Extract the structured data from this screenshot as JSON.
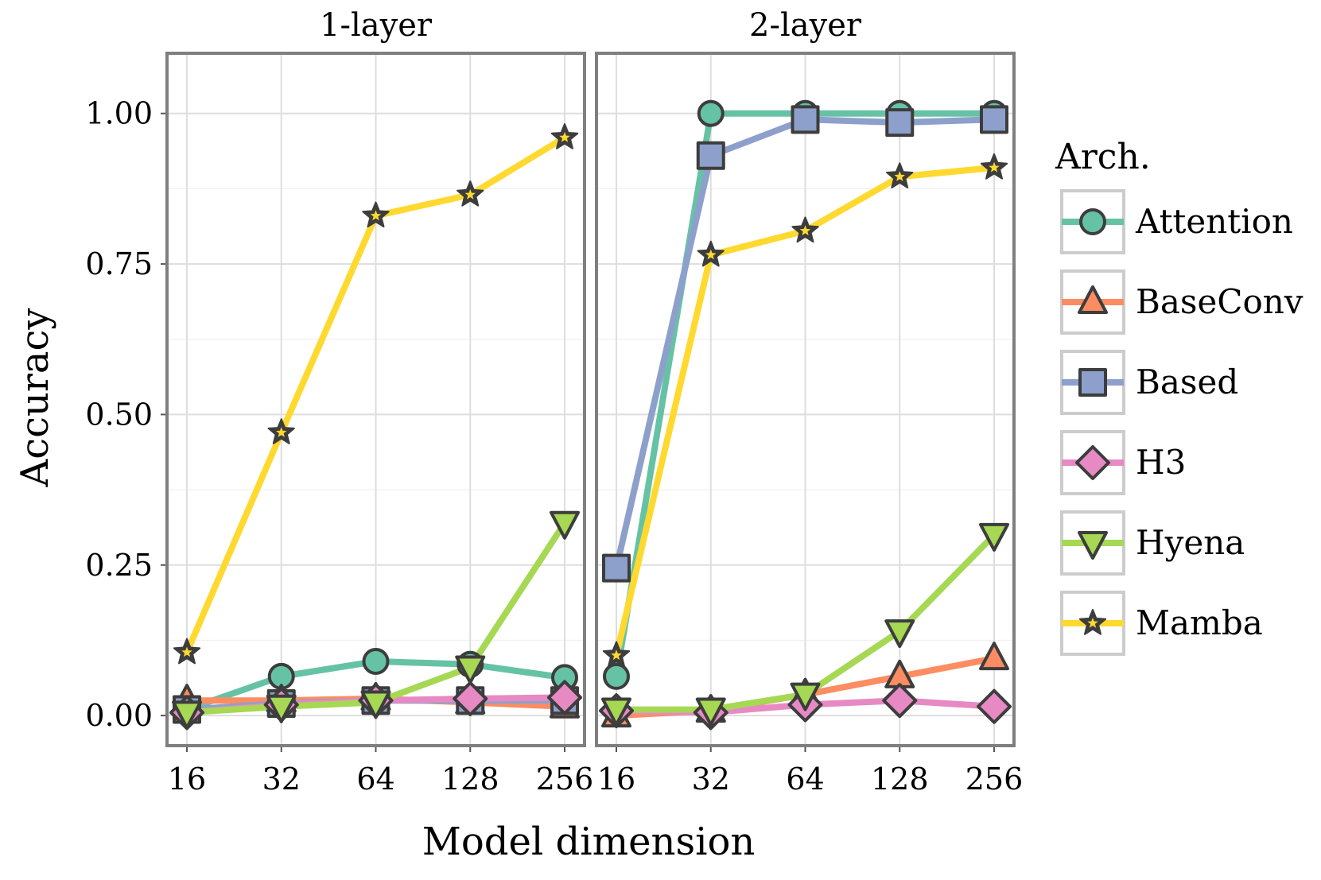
{
  "chart_data": {
    "type": "line",
    "xlabel": "Model dimension",
    "ylabel": "Accuracy",
    "categories": [
      "16",
      "32",
      "64",
      "128",
      "256"
    ],
    "ylim": [
      -0.05,
      1.1
    ],
    "yticks": [
      "0.00",
      "0.25",
      "0.50",
      "0.75",
      "1.00"
    ],
    "ytick_values": [
      0,
      0.25,
      0.5,
      0.75,
      1.0
    ],
    "legend": {
      "title": "Arch.",
      "position": "right",
      "items": [
        {
          "name": "Attention",
          "color": "#66c2a5",
          "marker": "circle"
        },
        {
          "name": "BaseConv",
          "color": "#fc8d62",
          "marker": "triangle-up"
        },
        {
          "name": "Based",
          "color": "#8da0cb",
          "marker": "square"
        },
        {
          "name": "H3",
          "color": "#e78ac3",
          "marker": "diamond"
        },
        {
          "name": "Hyena",
          "color": "#a6d854",
          "marker": "triangle-down"
        },
        {
          "name": "Mamba",
          "color": "#ffd92f",
          "marker": "star"
        }
      ]
    },
    "panels": [
      {
        "title": "1-layer",
        "series": [
          {
            "name": "Attention",
            "values": [
              0.01,
              0.065,
              0.09,
              0.085,
              0.063
            ]
          },
          {
            "name": "BaseConv",
            "values": [
              0.025,
              0.025,
              0.028,
              0.022,
              0.015
            ]
          },
          {
            "name": "Based",
            "values": [
              0.01,
              0.02,
              0.025,
              0.025,
              0.025
            ]
          },
          {
            "name": "H3",
            "values": [
              0.005,
              0.018,
              0.025,
              0.028,
              0.03
            ]
          },
          {
            "name": "Hyena",
            "values": [
              0.005,
              0.015,
              0.022,
              0.08,
              0.32
            ]
          },
          {
            "name": "Mamba",
            "values": [
              0.105,
              0.47,
              0.83,
              0.865,
              0.96
            ]
          }
        ]
      },
      {
        "title": "2-layer",
        "series": [
          {
            "name": "Attention",
            "values": [
              0.065,
              1.0,
              1.0,
              1.0,
              1.0
            ]
          },
          {
            "name": "BaseConv",
            "values": [
              0.0,
              0.008,
              0.035,
              0.065,
              0.095
            ]
          },
          {
            "name": "Based",
            "values": [
              0.245,
              0.93,
              0.99,
              0.985,
              0.99
            ]
          },
          {
            "name": "H3",
            "values": [
              0.008,
              0.005,
              0.018,
              0.025,
              0.015
            ]
          },
          {
            "name": "Hyena",
            "values": [
              0.01,
              0.01,
              0.035,
              0.14,
              0.3
            ]
          },
          {
            "name": "Mamba",
            "values": [
              0.1,
              0.765,
              0.805,
              0.895,
              0.91
            ]
          }
        ]
      }
    ]
  }
}
